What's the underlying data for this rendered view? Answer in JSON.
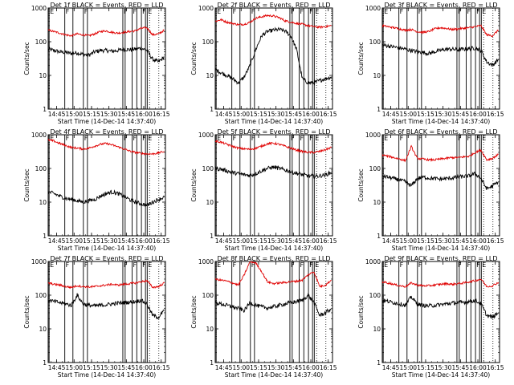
{
  "shared": {
    "series_names": [
      "BLACK = Events",
      "RED = LLD"
    ],
    "ylabel": "Counts/sec",
    "xlabel": "Start Time (14-Dec-14 14:37:40)",
    "x_tick_labels": [
      "14:45",
      "15:00",
      "15:15",
      "15:30",
      "15:45",
      "16:00",
      "16:15"
    ],
    "y_tick_labels": [
      "1",
      "10",
      "100",
      "1000"
    ],
    "y_scale": "log",
    "ylim": [
      1,
      1000
    ],
    "xlim_minutes_since_14_37_40": [
      0,
      101
    ],
    "colors": {
      "events": "#000000",
      "lld": "#e00000"
    }
  },
  "chart_data": [
    {
      "type": "line",
      "title": "Det 1f BLACK = Events, RED = LLD",
      "xlabel": "Start Time (14-Dec-14 14:37:40)",
      "ylabel": "Counts/sec",
      "x": [
        0,
        5,
        10,
        15,
        20,
        25,
        30,
        35,
        40,
        45,
        50,
        55,
        60,
        65,
        70,
        75,
        80,
        85,
        90,
        95,
        100
      ],
      "series": [
        {
          "name": "Events",
          "values": [
            60,
            55,
            50,
            48,
            45,
            47,
            42,
            40,
            50,
            55,
            55,
            52,
            55,
            60,
            58,
            60,
            65,
            55,
            30,
            25,
            35
          ]
        },
        {
          "name": "LLD",
          "values": [
            220,
            200,
            180,
            160,
            150,
            170,
            160,
            150,
            170,
            200,
            210,
            190,
            180,
            190,
            200,
            210,
            250,
            260,
            160,
            170,
            220
          ]
        }
      ]
    },
    {
      "type": "line",
      "title": "Det 2f BLACK = Events, RED = LLD",
      "xlabel": "Start Time (14-Dec-14 14:37:40)",
      "ylabel": "Counts/sec",
      "x": [
        0,
        5,
        10,
        15,
        20,
        25,
        30,
        35,
        40,
        45,
        50,
        55,
        60,
        65,
        70,
        75,
        80,
        85,
        90,
        95,
        100
      ],
      "series": [
        {
          "name": "Events",
          "values": [
            15,
            12,
            10,
            8,
            6,
            9,
            20,
            60,
            150,
            200,
            220,
            230,
            210,
            150,
            60,
            8,
            6,
            6,
            7,
            8,
            9
          ]
        },
        {
          "name": "LLD",
          "values": [
            400,
            450,
            380,
            350,
            320,
            330,
            380,
            500,
            550,
            600,
            580,
            520,
            420,
            380,
            350,
            330,
            300,
            280,
            270,
            280,
            300
          ]
        }
      ]
    },
    {
      "type": "line",
      "title": "Det 3f BLACK = Events, RED = LLD",
      "xlabel": "Start Time (14-Dec-14 14:37:40)",
      "ylabel": "Counts/sec",
      "x": [
        0,
        5,
        10,
        15,
        20,
        25,
        30,
        35,
        40,
        45,
        50,
        55,
        60,
        65,
        70,
        75,
        80,
        85,
        90,
        95,
        100
      ],
      "series": [
        {
          "name": "Events",
          "values": [
            80,
            75,
            70,
            65,
            60,
            55,
            50,
            48,
            45,
            50,
            55,
            60,
            60,
            58,
            60,
            62,
            65,
            55,
            25,
            20,
            30
          ]
        },
        {
          "name": "LLD",
          "values": [
            300,
            280,
            260,
            240,
            220,
            230,
            200,
            190,
            200,
            240,
            260,
            250,
            230,
            240,
            250,
            260,
            280,
            300,
            160,
            150,
            220
          ]
        }
      ]
    },
    {
      "type": "line",
      "title": "Det 4f BLACK = Events, RED = LLD",
      "xlabel": "Start Time (14-Dec-14 14:37:40)",
      "ylabel": "Counts/sec",
      "x": [
        0,
        5,
        10,
        15,
        20,
        25,
        30,
        35,
        40,
        45,
        50,
        55,
        60,
        65,
        70,
        75,
        80,
        85,
        90,
        95,
        100
      ],
      "series": [
        {
          "name": "Events",
          "values": [
            20,
            18,
            15,
            13,
            12,
            11,
            10,
            11,
            12,
            15,
            18,
            20,
            18,
            15,
            12,
            10,
            9,
            8,
            10,
            12,
            14
          ]
        },
        {
          "name": "LLD",
          "values": [
            700,
            650,
            550,
            480,
            420,
            400,
            380,
            400,
            460,
            520,
            550,
            500,
            440,
            380,
            330,
            300,
            280,
            270,
            270,
            290,
            320
          ]
        }
      ]
    },
    {
      "type": "line",
      "title": "Det 5f BLACK = Events, RED = LLD",
      "xlabel": "Start Time (14-Dec-14 14:37:40)",
      "ylabel": "Counts/sec",
      "x": [
        0,
        5,
        10,
        15,
        20,
        25,
        30,
        35,
        40,
        45,
        50,
        55,
        60,
        65,
        70,
        75,
        80,
        85,
        90,
        95,
        100
      ],
      "series": [
        {
          "name": "Events",
          "values": [
            100,
            95,
            85,
            75,
            70,
            65,
            62,
            70,
            85,
            100,
            110,
            100,
            90,
            80,
            72,
            65,
            60,
            58,
            60,
            65,
            75
          ]
        },
        {
          "name": "LLD",
          "values": [
            650,
            600,
            520,
            450,
            400,
            380,
            370,
            400,
            460,
            540,
            560,
            520,
            460,
            400,
            350,
            320,
            300,
            300,
            320,
            360,
            420
          ]
        }
      ]
    },
    {
      "type": "line",
      "title": "Det 6f BLACK = Events, RED = LLD",
      "xlabel": "Start Time (14-Dec-14 14:37:40)",
      "ylabel": "Counts/sec",
      "x": [
        0,
        5,
        10,
        15,
        20,
        25,
        30,
        35,
        40,
        45,
        50,
        55,
        60,
        65,
        70,
        75,
        80,
        85,
        90,
        95,
        100
      ],
      "series": [
        {
          "name": "Events",
          "values": [
            60,
            55,
            50,
            45,
            40,
            30,
            50,
            55,
            52,
            50,
            48,
            50,
            52,
            55,
            58,
            60,
            70,
            50,
            25,
            30,
            40
          ]
        },
        {
          "name": "LLD",
          "values": [
            250,
            230,
            210,
            190,
            170,
            450,
            200,
            190,
            180,
            180,
            190,
            200,
            210,
            210,
            220,
            230,
            300,
            350,
            180,
            200,
            260
          ]
        }
      ]
    },
    {
      "type": "line",
      "title": "Det 7f BLACK = Events, RED = LLD",
      "xlabel": "Start Time (14-Dec-14 14:37:40)",
      "ylabel": "Counts/sec",
      "x": [
        0,
        5,
        10,
        15,
        20,
        25,
        30,
        35,
        40,
        45,
        50,
        55,
        60,
        65,
        70,
        75,
        80,
        85,
        90,
        95,
        100
      ],
      "series": [
        {
          "name": "Events",
          "values": [
            70,
            65,
            60,
            55,
            50,
            100,
            55,
            50,
            48,
            50,
            52,
            55,
            58,
            60,
            62,
            65,
            70,
            55,
            25,
            22,
            35
          ]
        },
        {
          "name": "LLD",
          "values": [
            230,
            210,
            200,
            180,
            170,
            190,
            180,
            175,
            180,
            190,
            200,
            210,
            200,
            210,
            220,
            230,
            250,
            270,
            170,
            180,
            230
          ]
        }
      ]
    },
    {
      "type": "line",
      "title": "Det 8f BLACK = Events, RED = LLD",
      "xlabel": "Start Time (14-Dec-14 14:37:40)",
      "ylabel": "Counts/sec",
      "x": [
        0,
        5,
        10,
        15,
        20,
        25,
        30,
        35,
        40,
        45,
        50,
        55,
        60,
        65,
        70,
        75,
        80,
        85,
        90,
        95,
        100
      ],
      "series": [
        {
          "name": "Events",
          "values": [
            60,
            55,
            50,
            45,
            40,
            35,
            60,
            50,
            45,
            42,
            45,
            50,
            55,
            60,
            65,
            70,
            100,
            60,
            25,
            30,
            40
          ]
        },
        {
          "name": "LLD",
          "values": [
            300,
            280,
            260,
            230,
            200,
            400,
            1000,
            900,
            500,
            250,
            220,
            230,
            240,
            250,
            260,
            280,
            400,
            500,
            180,
            200,
            280
          ]
        }
      ]
    },
    {
      "type": "line",
      "title": "Det 9f BLACK = Events, RED = LLD",
      "xlabel": "Start Time (14-Dec-14 14:37:40)",
      "ylabel": "Counts/sec",
      "x": [
        0,
        5,
        10,
        15,
        20,
        25,
        30,
        35,
        40,
        45,
        50,
        55,
        60,
        65,
        70,
        75,
        80,
        85,
        90,
        95,
        100
      ],
      "series": [
        {
          "name": "Events",
          "values": [
            70,
            65,
            60,
            55,
            50,
            90,
            55,
            50,
            48,
            50,
            52,
            55,
            58,
            60,
            62,
            65,
            70,
            55,
            25,
            22,
            30
          ]
        },
        {
          "name": "LLD",
          "values": [
            250,
            230,
            210,
            190,
            180,
            230,
            200,
            190,
            190,
            200,
            210,
            220,
            210,
            220,
            230,
            250,
            270,
            300,
            180,
            190,
            240
          ]
        }
      ]
    }
  ],
  "flare_markers": [
    {
      "label": "E",
      "t": 0.8
    },
    {
      "label": "F",
      "t": 14.3
    },
    {
      "label": "",
      "t": 21.3
    },
    {
      "label": "F",
      "t": 30.3
    },
    {
      "label": "",
      "t": 33.8
    },
    {
      "label": "F",
      "t": 64.3
    },
    {
      "label": "",
      "t": 66.3
    },
    {
      "label": "F",
      "t": 72.3
    },
    {
      "label": "",
      "t": 76.3
    },
    {
      "label": "F",
      "t": 80.3
    },
    {
      "label": "",
      "t": 83.8
    },
    {
      "label": "E",
      "t": 85.3
    }
  ],
  "dotted_markers": [
    {
      "t": 87.3
    },
    {
      "t": 95.3
    }
  ]
}
